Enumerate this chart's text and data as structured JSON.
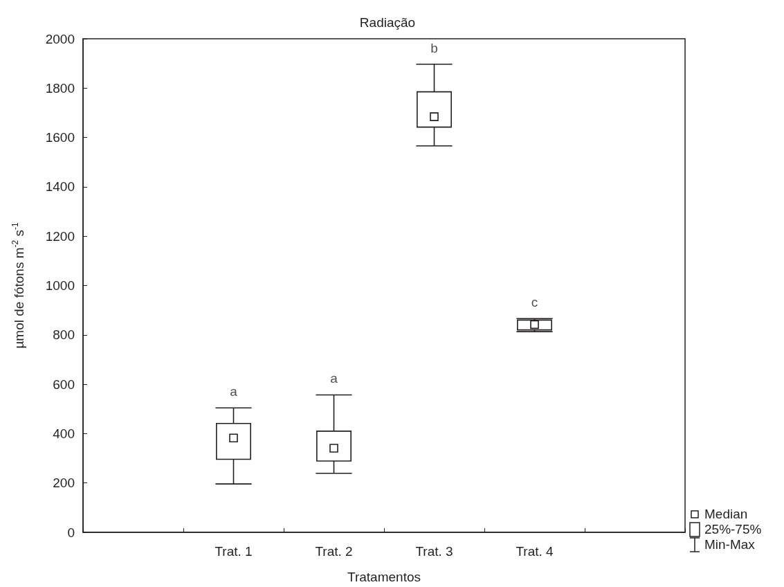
{
  "chart_data": {
    "type": "box",
    "title": "Radiação",
    "xlabel": "Tratamentos",
    "ylabel": "µmol de fótons m$^{-2}$ s$^{-1}$",
    "categories": [
      null,
      "Trat. 1",
      "Trat. 2",
      "Trat. 3",
      "Trat. 4",
      null
    ],
    "boxes": [
      null,
      {
        "low": 196,
        "q1": 296,
        "median": 382,
        "q3": 441,
        "high": 504
      },
      {
        "low": 239,
        "q1": 289,
        "median": 341,
        "q3": 410,
        "high": 557
      },
      {
        "low": 1566,
        "q1": 1642,
        "median": 1684,
        "q3": 1785,
        "high": 1897
      },
      {
        "low": 813,
        "q1": 820,
        "median": 842,
        "q3": 860,
        "high": 866
      },
      null
    ],
    "color": "#231f20",
    "ylim": [
      0,
      2000
    ],
    "yticks": [
      0,
      200,
      400,
      600,
      800,
      1000,
      1200,
      1400,
      1600,
      1800,
      2000
    ],
    "grid": false,
    "annotations": [
      "a",
      "a",
      "b",
      "c",
      "Median",
      "25%-75%",
      "Min-Max"
    ]
  }
}
